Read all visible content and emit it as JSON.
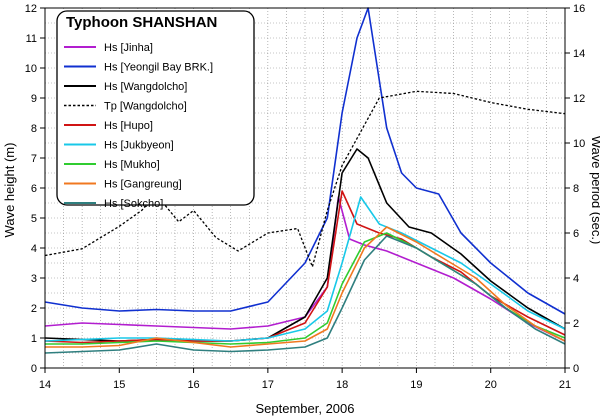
{
  "chart_data": {
    "type": "line",
    "title": "Typhoon SHANSHAN",
    "xlabel": "September, 2006",
    "ylabel": "Wave height (m)",
    "y2label": "Wave period (sec.)",
    "xlim": [
      14,
      21
    ],
    "ylim": [
      0,
      12
    ],
    "y2lim": [
      0,
      16
    ],
    "xticks": [
      14,
      15,
      16,
      17,
      18,
      19,
      20,
      21
    ],
    "yticks": [
      0,
      1,
      2,
      3,
      4,
      5,
      6,
      7,
      8,
      9,
      10,
      11,
      12
    ],
    "y2ticks": [
      0,
      2,
      4,
      6,
      8,
      10,
      12,
      14,
      16
    ],
    "grid": true,
    "legend_position": "top-left",
    "series": [
      {
        "name": "Hs [Jinha]",
        "color": "#b21ecf",
        "axis": "left",
        "dashed": false,
        "x": [
          14.0,
          14.5,
          15.0,
          15.5,
          16.0,
          16.5,
          17.0,
          17.5,
          17.8,
          17.95,
          18.1,
          18.3,
          18.6,
          19.0,
          19.5,
          20.0,
          20.5,
          21.0
        ],
        "y": [
          1.4,
          1.5,
          1.45,
          1.4,
          1.35,
          1.3,
          1.4,
          1.7,
          2.7,
          5.7,
          4.3,
          4.1,
          3.9,
          3.5,
          3.0,
          2.3,
          1.5,
          0.9
        ]
      },
      {
        "name": "Hs [Yeongil Bay BRK.]",
        "color": "#1030d0",
        "axis": "left",
        "dashed": false,
        "x": [
          14.0,
          14.5,
          15.0,
          15.5,
          16.0,
          16.5,
          17.0,
          17.5,
          17.8,
          18.0,
          18.2,
          18.35,
          18.6,
          18.8,
          19.0,
          19.3,
          19.6,
          20.0,
          20.5,
          21.0
        ],
        "y": [
          2.2,
          2.0,
          1.9,
          1.95,
          1.9,
          1.9,
          2.2,
          3.5,
          5.0,
          8.5,
          11.0,
          12.0,
          8.0,
          6.5,
          6.0,
          5.8,
          4.5,
          3.5,
          2.5,
          1.8
        ]
      },
      {
        "name": "Hs [Wangdolcho]",
        "color": "#000000",
        "axis": "left",
        "dashed": false,
        "x": [
          14.0,
          14.5,
          15.0,
          15.5,
          16.0,
          16.5,
          17.0,
          17.5,
          17.8,
          18.0,
          18.2,
          18.35,
          18.6,
          18.9,
          19.2,
          19.6,
          20.0,
          20.5,
          21.0
        ],
        "y": [
          1.0,
          0.95,
          0.9,
          0.95,
          0.9,
          0.9,
          1.0,
          1.7,
          3.0,
          6.5,
          7.3,
          7.0,
          5.5,
          4.7,
          4.5,
          3.8,
          2.9,
          2.0,
          1.3
        ]
      },
      {
        "name": "Tp [Wangdolcho]",
        "color": "#000000",
        "axis": "right",
        "dashed": true,
        "x": [
          14.0,
          14.5,
          15.0,
          15.3,
          15.5,
          15.8,
          16.0,
          16.3,
          16.6,
          17.0,
          17.4,
          17.6,
          17.8,
          18.0,
          18.5,
          19.0,
          19.5,
          20.0,
          20.5,
          21.0
        ],
        "y": [
          5.0,
          5.3,
          6.3,
          7.0,
          7.7,
          6.5,
          7.0,
          5.8,
          5.2,
          6.0,
          6.2,
          4.5,
          7.0,
          9.0,
          12.0,
          12.3,
          12.2,
          11.8,
          11.5,
          11.3
        ]
      },
      {
        "name": "Hs [Hupo]",
        "color": "#d01414",
        "axis": "left",
        "dashed": false,
        "x": [
          14.0,
          14.5,
          15.0,
          15.5,
          16.0,
          16.5,
          17.0,
          17.5,
          17.8,
          18.0,
          18.2,
          18.5,
          18.8,
          19.2,
          19.6,
          20.0,
          20.5,
          21.0
        ],
        "y": [
          0.9,
          0.85,
          0.9,
          0.95,
          0.9,
          0.9,
          1.0,
          1.5,
          2.7,
          5.9,
          4.8,
          4.5,
          4.3,
          3.7,
          3.2,
          2.4,
          1.7,
          1.1
        ]
      },
      {
        "name": "Hs [Jukbyeon]",
        "color": "#18c8e8",
        "axis": "left",
        "dashed": false,
        "x": [
          14.0,
          14.5,
          15.0,
          15.5,
          16.0,
          16.5,
          17.0,
          17.5,
          17.8,
          18.0,
          18.25,
          18.5,
          18.8,
          19.2,
          19.6,
          20.0,
          20.5,
          21.0
        ],
        "y": [
          0.9,
          0.95,
          1.0,
          1.0,
          0.95,
          0.9,
          1.0,
          1.3,
          1.9,
          3.5,
          5.7,
          4.8,
          4.5,
          4.0,
          3.5,
          2.8,
          1.9,
          1.3
        ]
      },
      {
        "name": "Hs [Mukho]",
        "color": "#30cc30",
        "axis": "left",
        "dashed": false,
        "x": [
          14.0,
          14.5,
          15.0,
          15.5,
          16.0,
          16.5,
          17.0,
          17.5,
          17.8,
          18.0,
          18.3,
          18.6,
          19.0,
          19.4,
          19.8,
          20.2,
          20.6,
          21.0
        ],
        "y": [
          0.8,
          0.8,
          0.85,
          0.9,
          0.85,
          0.8,
          0.85,
          1.0,
          1.5,
          2.8,
          4.2,
          4.5,
          4.0,
          3.4,
          2.8,
          2.0,
          1.4,
          1.0
        ]
      },
      {
        "name": "Hs [Gangreung]",
        "color": "#f07820",
        "axis": "left",
        "dashed": false,
        "x": [
          14.0,
          14.5,
          15.0,
          15.5,
          16.0,
          16.5,
          17.0,
          17.5,
          17.8,
          18.0,
          18.3,
          18.6,
          19.0,
          19.4,
          19.8,
          20.2,
          20.6,
          21.0
        ],
        "y": [
          0.7,
          0.7,
          0.75,
          1.0,
          0.85,
          0.7,
          0.8,
          0.9,
          1.3,
          2.5,
          4.0,
          4.7,
          4.2,
          3.6,
          3.0,
          2.1,
          1.4,
          0.9
        ]
      },
      {
        "name": "Hs [Sokcho]",
        "color": "#2f7f7f",
        "axis": "left",
        "dashed": false,
        "x": [
          14.0,
          14.5,
          15.0,
          15.5,
          16.0,
          16.5,
          17.0,
          17.5,
          17.8,
          18.0,
          18.3,
          18.6,
          19.0,
          19.4,
          19.8,
          20.2,
          20.6,
          21.0
        ],
        "y": [
          0.5,
          0.55,
          0.6,
          0.8,
          0.6,
          0.55,
          0.6,
          0.7,
          1.0,
          2.0,
          3.6,
          4.4,
          4.0,
          3.4,
          2.8,
          2.0,
          1.3,
          0.8
        ]
      }
    ]
  }
}
